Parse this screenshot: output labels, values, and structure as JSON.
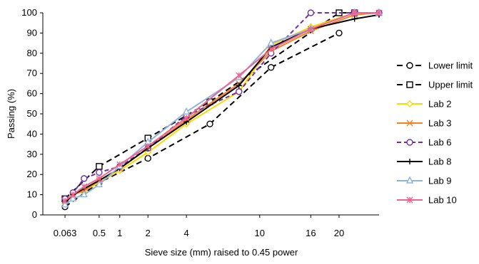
{
  "chart_data": {
    "type": "line",
    "title": "",
    "xlabel": "Sieve size (mm) raised to 0.45 power",
    "ylabel": "Passing (%)",
    "x_scale": "power-0.45",
    "x_ticks": [
      {
        "value": 0.063,
        "label": "0.063"
      },
      {
        "value": 0.5,
        "label": "0.5"
      },
      {
        "value": 1,
        "label": "1"
      },
      {
        "value": 2,
        "label": "2"
      },
      {
        "value": 4,
        "label": "4"
      },
      {
        "value": 10,
        "label": "10"
      },
      {
        "value": 16,
        "label": "16"
      },
      {
        "value": 20,
        "label": "20"
      }
    ],
    "xlim": [
      0.0,
      26.5
    ],
    "ylim": [
      0,
      100
    ],
    "y_ticks": [
      0,
      10,
      20,
      30,
      40,
      50,
      60,
      70,
      80,
      90,
      100
    ],
    "grid": false,
    "legend_position": "right",
    "series": [
      {
        "name": "Lower limit",
        "color": "#000000",
        "dash": "8,5",
        "marker": "circle",
        "x": [
          0.063,
          0.5,
          2,
          5.6,
          11.2,
          20
        ],
        "y": [
          4,
          16,
          28,
          45,
          73,
          90
        ]
      },
      {
        "name": "Upper limit",
        "color": "#000000",
        "dash": "8,5",
        "marker": "square",
        "x": [
          0.063,
          0.5,
          2,
          5.6,
          20,
          22.4
        ],
        "y": [
          8,
          24,
          38,
          56,
          100,
          100
        ]
      },
      {
        "name": "Lab 2",
        "color": "#ffd700",
        "dash": "",
        "marker": "diamond",
        "x": [
          0.063,
          0.125,
          0.25,
          0.5,
          1,
          2,
          4,
          8,
          11.2,
          16,
          22.4,
          31.5
        ],
        "y": [
          6,
          10,
          12,
          16,
          22,
          31,
          45,
          61,
          84,
          93,
          100,
          100
        ]
      },
      {
        "name": "Lab 3",
        "color": "#f58220",
        "dash": "",
        "marker": "x",
        "x": [
          0.063,
          0.125,
          0.25,
          0.5,
          1,
          2,
          4,
          8,
          11.2,
          16,
          22.4,
          31.5
        ],
        "y": [
          7,
          10,
          12,
          17,
          23,
          33,
          47,
          65,
          81,
          91,
          99,
          100
        ]
      },
      {
        "name": "Lab 6",
        "color": "#7030a0",
        "dash": "6,4",
        "marker": "circle",
        "x": [
          0.063,
          0.125,
          0.25,
          0.5,
          1,
          2,
          4,
          8,
          11.2,
          16,
          22.4,
          31.5
        ],
        "y": [
          8,
          11,
          18,
          21,
          24,
          33,
          49,
          61,
          80,
          100,
          100,
          100
        ]
      },
      {
        "name": "Lab 8",
        "color": "#000000",
        "dash": "",
        "marker": "plus",
        "x": [
          0.063,
          0.125,
          0.25,
          0.5,
          1,
          2,
          4,
          8,
          11.2,
          16,
          22.4,
          31.5
        ],
        "y": [
          6,
          10,
          13,
          17,
          23,
          33,
          46,
          64,
          83,
          92,
          97,
          99
        ]
      },
      {
        "name": "Lab 9",
        "color": "#8fb3dd",
        "dash": "",
        "marker": "triangle",
        "x": [
          0.063,
          0.125,
          0.25,
          0.5,
          1,
          2,
          4,
          8,
          11.2,
          16,
          22.4,
          31.5
        ],
        "y": [
          5,
          8,
          10,
          15,
          24,
          36,
          51,
          68,
          85,
          92,
          100,
          100
        ]
      },
      {
        "name": "Lab 10",
        "color": "#f06292",
        "dash": "",
        "marker": "asterisk",
        "x": [
          0.063,
          0.125,
          0.25,
          0.5,
          1,
          2,
          4,
          8,
          11.2,
          16,
          22.4,
          31.5
        ],
        "y": [
          7,
          10,
          14,
          18,
          25,
          34,
          48,
          69,
          82,
          92,
          100,
          100
        ]
      }
    ]
  }
}
